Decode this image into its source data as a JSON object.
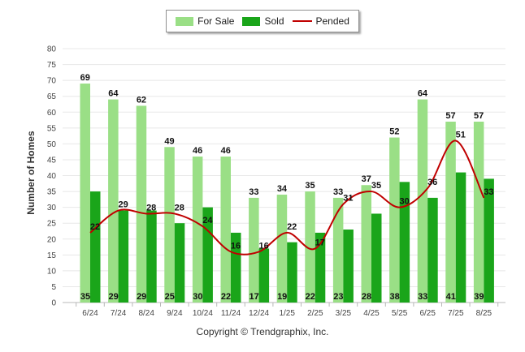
{
  "chart_data": {
    "type": "bar",
    "categories": [
      "6/24",
      "7/24",
      "8/24",
      "9/24",
      "10/24",
      "11/24",
      "12/24",
      "1/25",
      "2/25",
      "3/25",
      "4/25",
      "5/25",
      "6/25",
      "7/25",
      "8/25"
    ],
    "series": [
      {
        "name": "For Sale",
        "type": "bar",
        "color": "#9adf86",
        "values": [
          69,
          64,
          62,
          49,
          46,
          46,
          33,
          34,
          35,
          33,
          37,
          52,
          64,
          57,
          57
        ]
      },
      {
        "name": "Sold",
        "type": "bar",
        "color": "#1aa51a",
        "values": [
          35,
          29,
          29,
          25,
          30,
          22,
          17,
          19,
          22,
          23,
          28,
          38,
          33,
          41,
          39
        ]
      },
      {
        "name": "Pended",
        "type": "line",
        "color": "#c00000",
        "values": [
          22,
          29,
          28,
          28,
          24,
          16,
          16,
          22,
          17,
          31,
          35,
          30,
          36,
          51,
          33
        ]
      }
    ],
    "xlabel": "",
    "ylabel": "Number of Homes",
    "ylim": [
      0,
      80
    ],
    "yticks": [
      0,
      5,
      10,
      15,
      20,
      25,
      30,
      35,
      40,
      45,
      50,
      55,
      60,
      65,
      70,
      75,
      80
    ],
    "grid": true,
    "legend_position": "top-center"
  },
  "copyright": "Copyright © Trendgraphix, Inc."
}
